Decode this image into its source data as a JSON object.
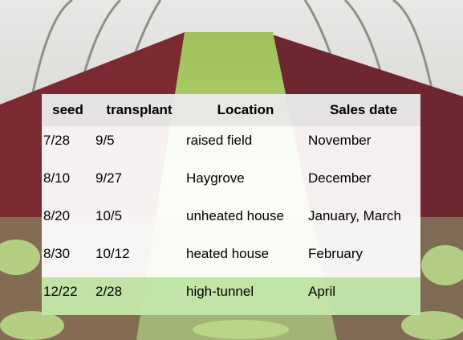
{
  "table": {
    "header": [
      "seed",
      "transplant",
      "Location",
      "Sales date"
    ],
    "rows": [
      [
        "7/28",
        "9/5",
        "raised field",
        "November"
      ],
      [
        "8/10",
        "9/27",
        "Haygrove",
        "December"
      ],
      [
        "8/20",
        "10/5",
        "unheated house",
        "January, March"
      ],
      [
        "8/30",
        "10/12",
        "heated house",
        "February"
      ],
      [
        "12/22",
        "2/28",
        "high-tunnel",
        "April"
      ]
    ]
  }
}
